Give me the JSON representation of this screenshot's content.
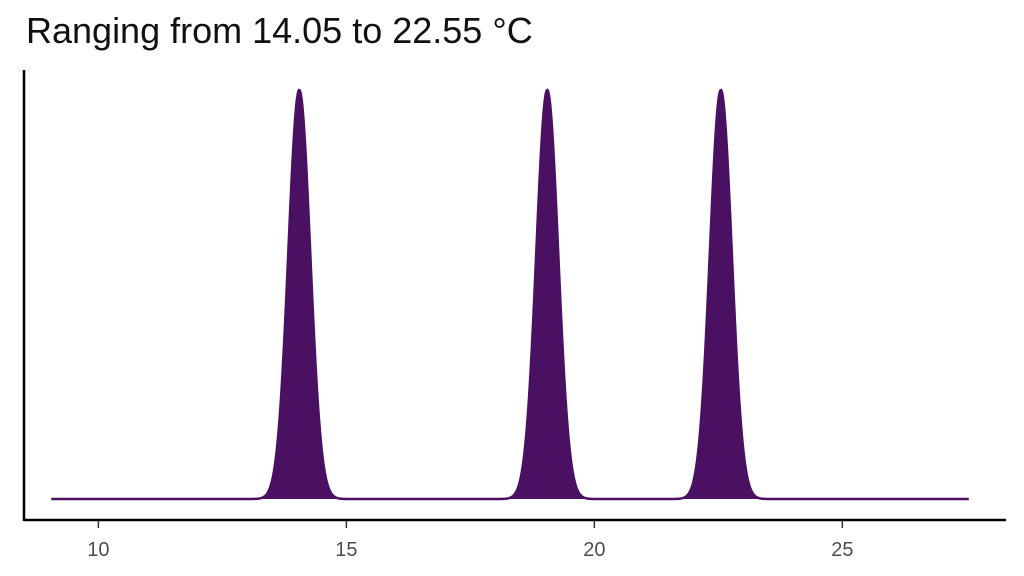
{
  "chart_data": {
    "type": "area",
    "title": "Ranging from 14.05 to 22.55 °C",
    "xlabel": "",
    "ylabel": "",
    "xlim": [
      8.5,
      28.3
    ],
    "x_ticks": [
      10,
      15,
      20,
      25
    ],
    "x_tick_labels": [
      "10",
      "15",
      "20",
      "25"
    ],
    "y_ticks_shown": false,
    "grid": false,
    "legend": "none",
    "fill_color": "#4a1062",
    "curve": {
      "x_range": [
        9.05,
        27.55
      ],
      "peaks": [
        {
          "center": 14.05,
          "sd": 0.22,
          "height": 1
        },
        {
          "center": 19.05,
          "sd": 0.22,
          "height": 1
        },
        {
          "center": 22.55,
          "sd": 0.22,
          "height": 1
        }
      ]
    }
  }
}
